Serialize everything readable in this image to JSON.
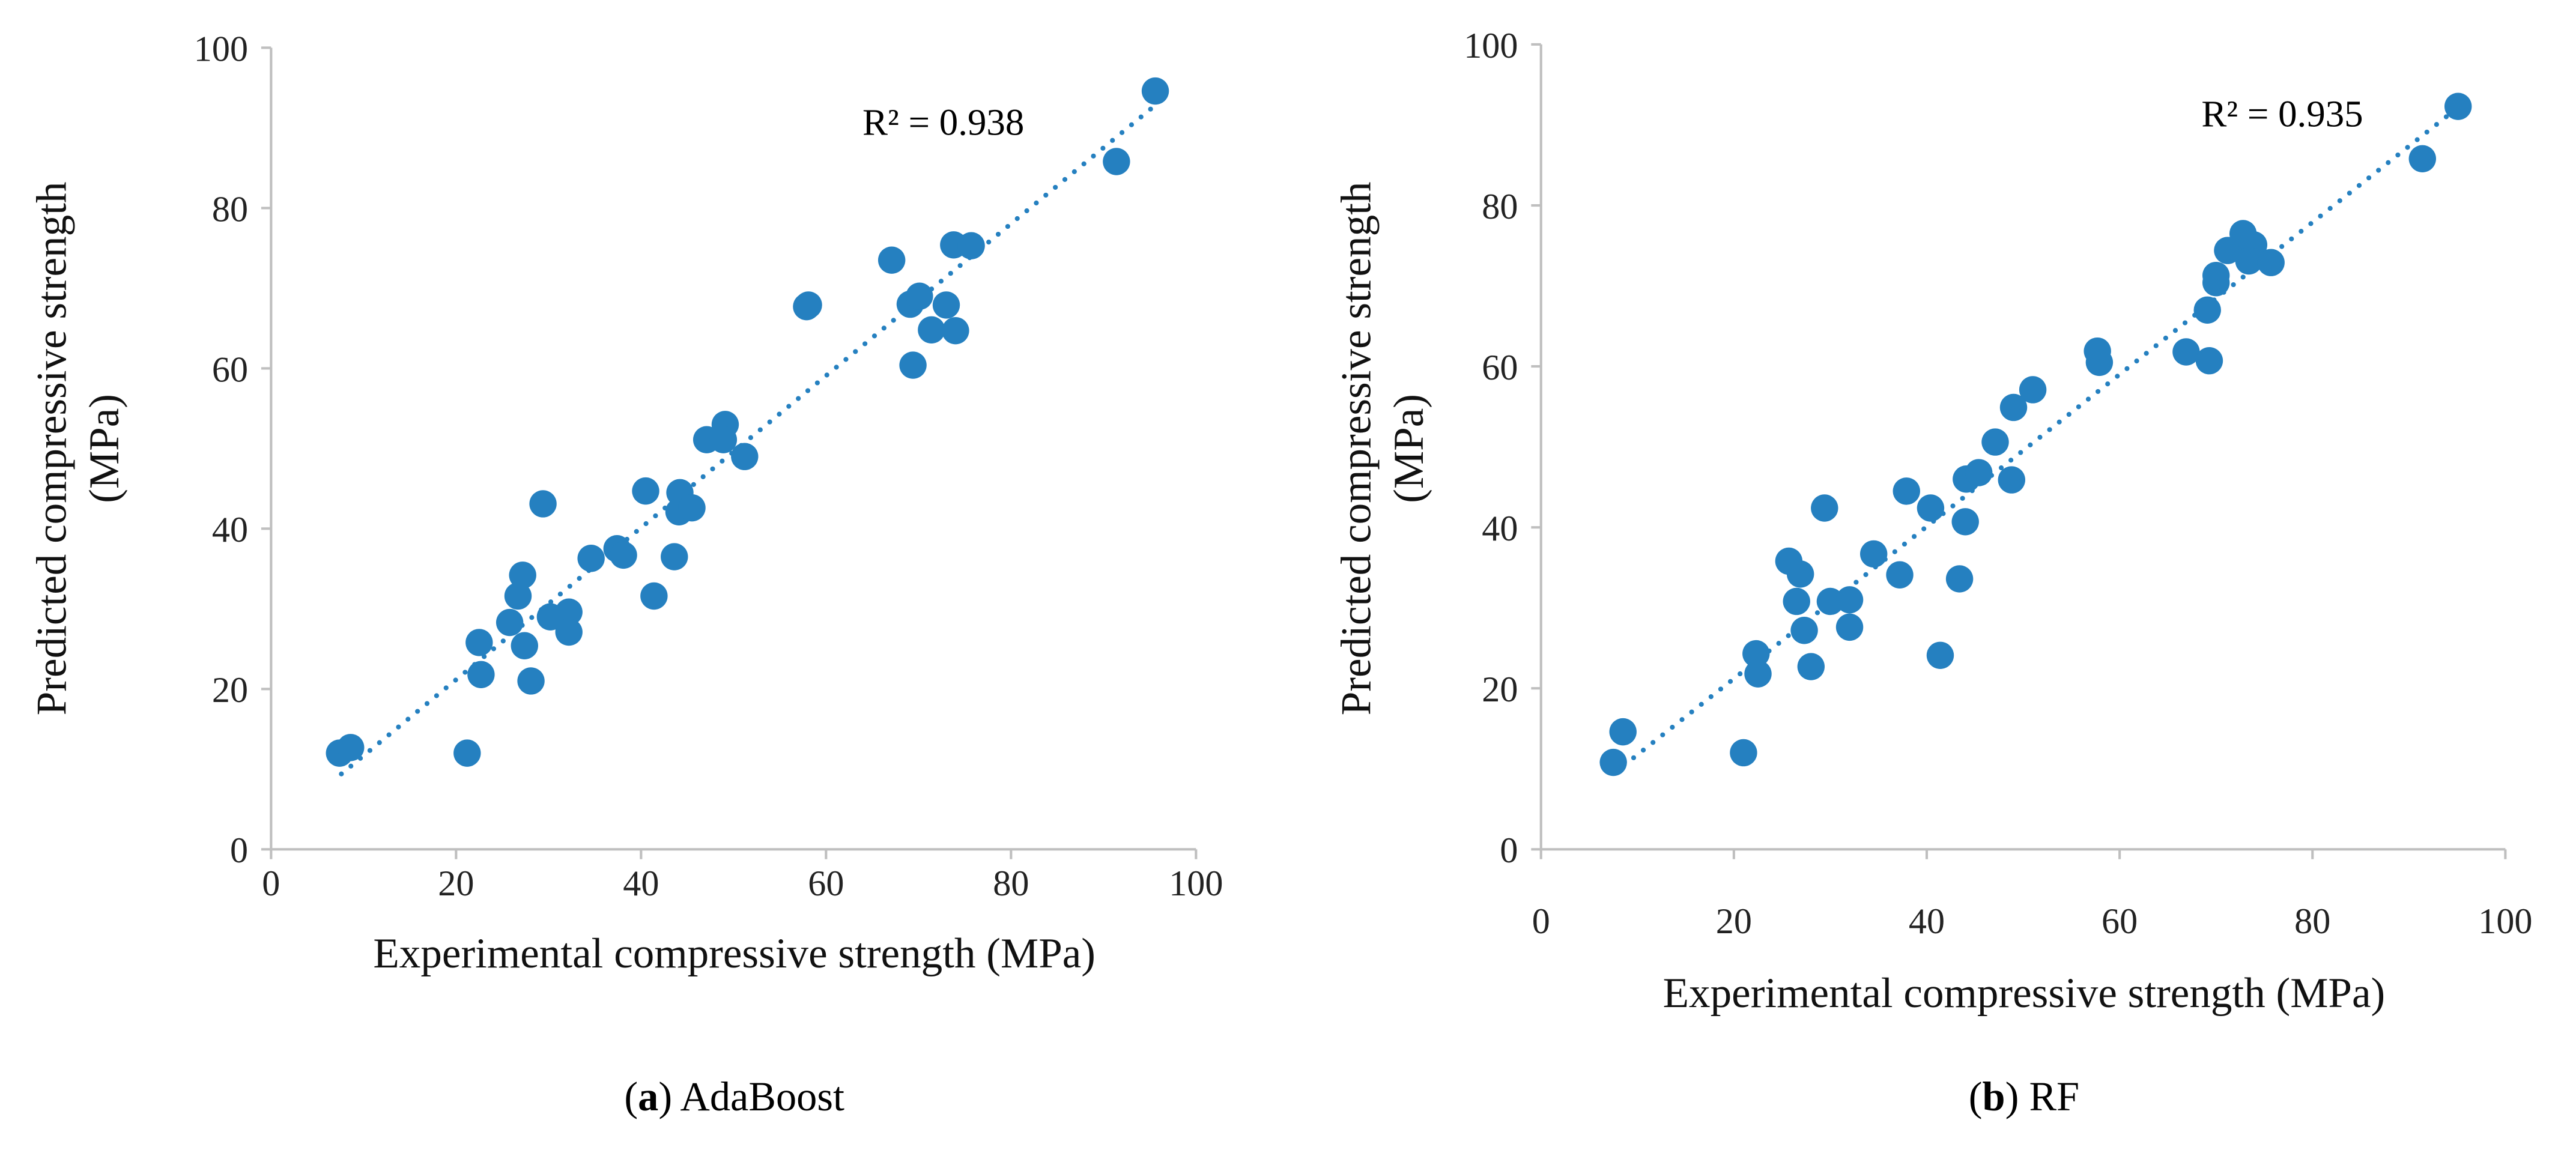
{
  "colors": {
    "marker": "#2580C0",
    "axis": "#BFBFBF"
  },
  "chart_data": [
    {
      "type": "scatter",
      "caption_letter": "a",
      "caption_open": "(",
      "caption_close": ")",
      "caption_text": " AdaBoost",
      "xlabel": "Experimental compressive strength (MPa)",
      "ylabel_line1": "Predicted compressive strength",
      "ylabel_line2": "(MPa)",
      "xlim": [
        0,
        100
      ],
      "ylim": [
        0,
        100
      ],
      "xticks": [
        "0",
        "20",
        "40",
        "60",
        "80",
        "100"
      ],
      "yticks": [
        "0",
        "20",
        "40",
        "60",
        "80",
        "100"
      ],
      "grid": false,
      "annotation": "R² = 0.938",
      "trendline": {
        "type": "linear",
        "slope": 0.948,
        "intercept": 2.2,
        "x_range": [
          7.6,
          95.6
        ],
        "style": "dotted"
      },
      "points": [
        [
          7.4,
          12.0
        ],
        [
          8.6,
          12.7
        ],
        [
          21.2,
          12.0
        ],
        [
          22.5,
          25.8
        ],
        [
          22.7,
          21.8
        ],
        [
          28.1,
          21.0
        ],
        [
          27.4,
          25.4
        ],
        [
          25.8,
          28.3
        ],
        [
          26.7,
          31.6
        ],
        [
          27.2,
          34.2
        ],
        [
          29.4,
          43.1
        ],
        [
          30.2,
          29.0
        ],
        [
          32.2,
          29.6
        ],
        [
          32.2,
          27.1
        ],
        [
          34.6,
          36.3
        ],
        [
          37.4,
          37.5
        ],
        [
          38.1,
          36.7
        ],
        [
          40.5,
          44.7
        ],
        [
          41.4,
          31.6
        ],
        [
          43.6,
          36.5
        ],
        [
          44.2,
          44.5
        ],
        [
          44.1,
          42.1
        ],
        [
          45.5,
          42.6
        ],
        [
          47.1,
          51.1
        ],
        [
          49.1,
          53.0
        ],
        [
          48.9,
          51.1
        ],
        [
          51.2,
          49.0
        ],
        [
          57.9,
          67.7
        ],
        [
          58.1,
          67.9
        ],
        [
          67.1,
          73.5
        ],
        [
          69.4,
          60.4
        ],
        [
          69.1,
          68.0
        ],
        [
          70.1,
          69.0
        ],
        [
          71.4,
          64.8
        ],
        [
          73.0,
          67.9
        ],
        [
          74.0,
          64.7
        ],
        [
          73.8,
          75.4
        ],
        [
          75.7,
          75.3
        ],
        [
          91.4,
          85.8
        ],
        [
          95.6,
          94.6
        ]
      ]
    },
    {
      "type": "scatter",
      "caption_letter": "b",
      "caption_open": "(",
      "caption_close": ")",
      "caption_text": " RF",
      "xlabel": "Experimental compressive strength (MPa)",
      "ylabel_line1": "Predicted compressive strength",
      "ylabel_line2": "(MPa)",
      "xlim": [
        0,
        100
      ],
      "ylim": [
        0,
        100
      ],
      "xticks": [
        "0",
        "20",
        "40",
        "60",
        "80",
        "100"
      ],
      "yticks": [
        "0",
        "20",
        "40",
        "60",
        "80",
        "100"
      ],
      "grid": false,
      "annotation": "R² = 0.935",
      "trendline": {
        "type": "linear",
        "slope": 0.945,
        "intercept": 2.3,
        "x_range": [
          7.6,
          95.2
        ],
        "style": "dotted"
      },
      "points": [
        [
          7.5,
          10.8
        ],
        [
          8.5,
          14.6
        ],
        [
          21.0,
          12.0
        ],
        [
          22.3,
          24.3
        ],
        [
          22.5,
          21.8
        ],
        [
          28.0,
          22.7
        ],
        [
          27.3,
          27.2
        ],
        [
          26.5,
          30.8
        ],
        [
          26.9,
          34.2
        ],
        [
          25.7,
          35.8
        ],
        [
          29.4,
          42.4
        ],
        [
          30.0,
          30.8
        ],
        [
          32.0,
          31.0
        ],
        [
          32.0,
          27.6
        ],
        [
          34.5,
          36.7
        ],
        [
          37.2,
          34.1
        ],
        [
          37.9,
          44.5
        ],
        [
          40.4,
          42.4
        ],
        [
          41.4,
          24.1
        ],
        [
          43.4,
          33.6
        ],
        [
          44.0,
          40.7
        ],
        [
          44.1,
          46.0
        ],
        [
          45.4,
          46.8
        ],
        [
          47.1,
          50.6
        ],
        [
          48.8,
          45.9
        ],
        [
          49.0,
          54.9
        ],
        [
          51.0,
          57.1
        ],
        [
          57.7,
          61.9
        ],
        [
          57.9,
          60.5
        ],
        [
          66.9,
          61.8
        ],
        [
          69.3,
          60.7
        ],
        [
          69.1,
          67.0
        ],
        [
          70.0,
          70.4
        ],
        [
          70.0,
          71.3
        ],
        [
          71.2,
          74.4
        ],
        [
          72.8,
          76.5
        ],
        [
          73.9,
          75.1
        ],
        [
          73.4,
          73.1
        ],
        [
          75.7,
          72.9
        ],
        [
          91.4,
          85.8
        ],
        [
          95.1,
          92.3
        ]
      ]
    }
  ]
}
